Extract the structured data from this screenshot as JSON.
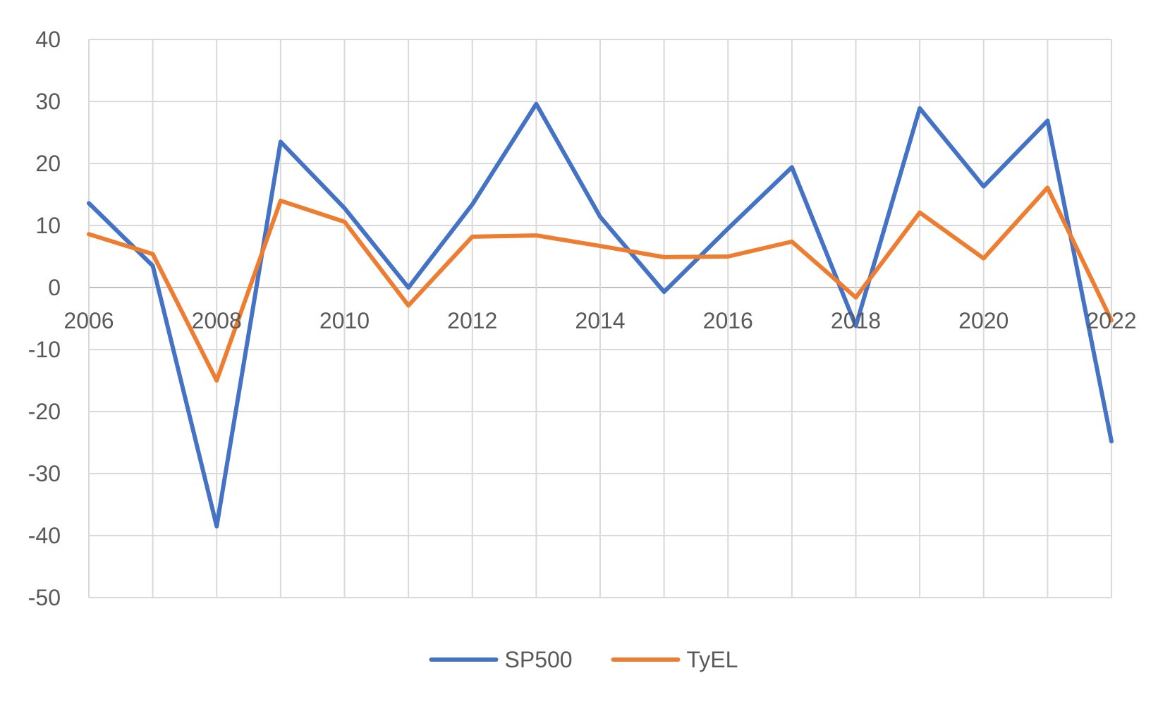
{
  "chart_data": {
    "type": "line",
    "title": "",
    "xlabel": "",
    "ylabel": "",
    "x": [
      2006,
      2007,
      2008,
      2009,
      2010,
      2011,
      2012,
      2013,
      2014,
      2015,
      2016,
      2017,
      2018,
      2019,
      2020,
      2021,
      2022
    ],
    "x_tick_labels": [
      "2006",
      "2008",
      "2010",
      "2012",
      "2014",
      "2016",
      "2018",
      "2020",
      "2022"
    ],
    "y_tick_labels": [
      "40",
      "30",
      "20",
      "10",
      "0",
      "-10",
      "-20",
      "-30",
      "-40",
      "-50"
    ],
    "xlim": [
      2006,
      2022
    ],
    "ylim": [
      -50,
      40
    ],
    "grid": true,
    "legend_position": "bottom",
    "series": [
      {
        "name": "SP500",
        "color": "#4472C4",
        "values": [
          13.6,
          3.5,
          -38.5,
          23.5,
          12.8,
          0.0,
          13.4,
          29.6,
          11.4,
          -0.7,
          9.5,
          19.4,
          -6.2,
          28.9,
          16.3,
          26.9,
          -24.8
        ]
      },
      {
        "name": "TyEL",
        "color": "#ED7D31",
        "values": [
          8.6,
          5.4,
          -15.0,
          14.0,
          10.6,
          -2.9,
          8.2,
          8.4,
          6.7,
          4.9,
          5.0,
          7.4,
          -1.6,
          12.1,
          4.7,
          16.1,
          -5.3
        ]
      }
    ]
  }
}
